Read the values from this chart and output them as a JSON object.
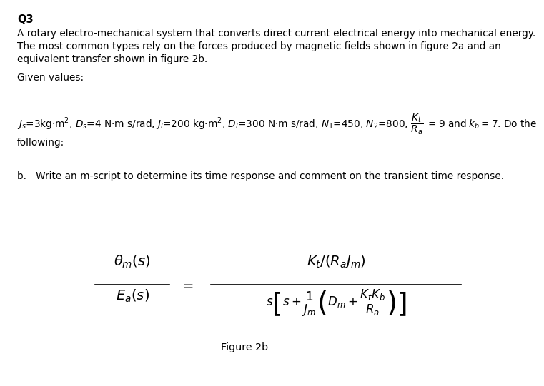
{
  "title": "Q3",
  "para1": "A rotary electro-mechanical system that converts direct current electrical energy into mechanical energy.",
  "para2": "The most common types rely on the forces produced by magnetic fields shown in figure 2a and an",
  "para3": "equivalent transfer shown in figure 2b.",
  "given": "Given values:",
  "following": "following:",
  "part_b": "b.   Write an m-script to determine its time response and comment on the transient time response.",
  "figure_label": "Figure 2b",
  "bg_color": "#ffffff",
  "text_color": "#000000",
  "fs_title": 10.5,
  "fs_body": 9.8,
  "fs_eq": 13
}
